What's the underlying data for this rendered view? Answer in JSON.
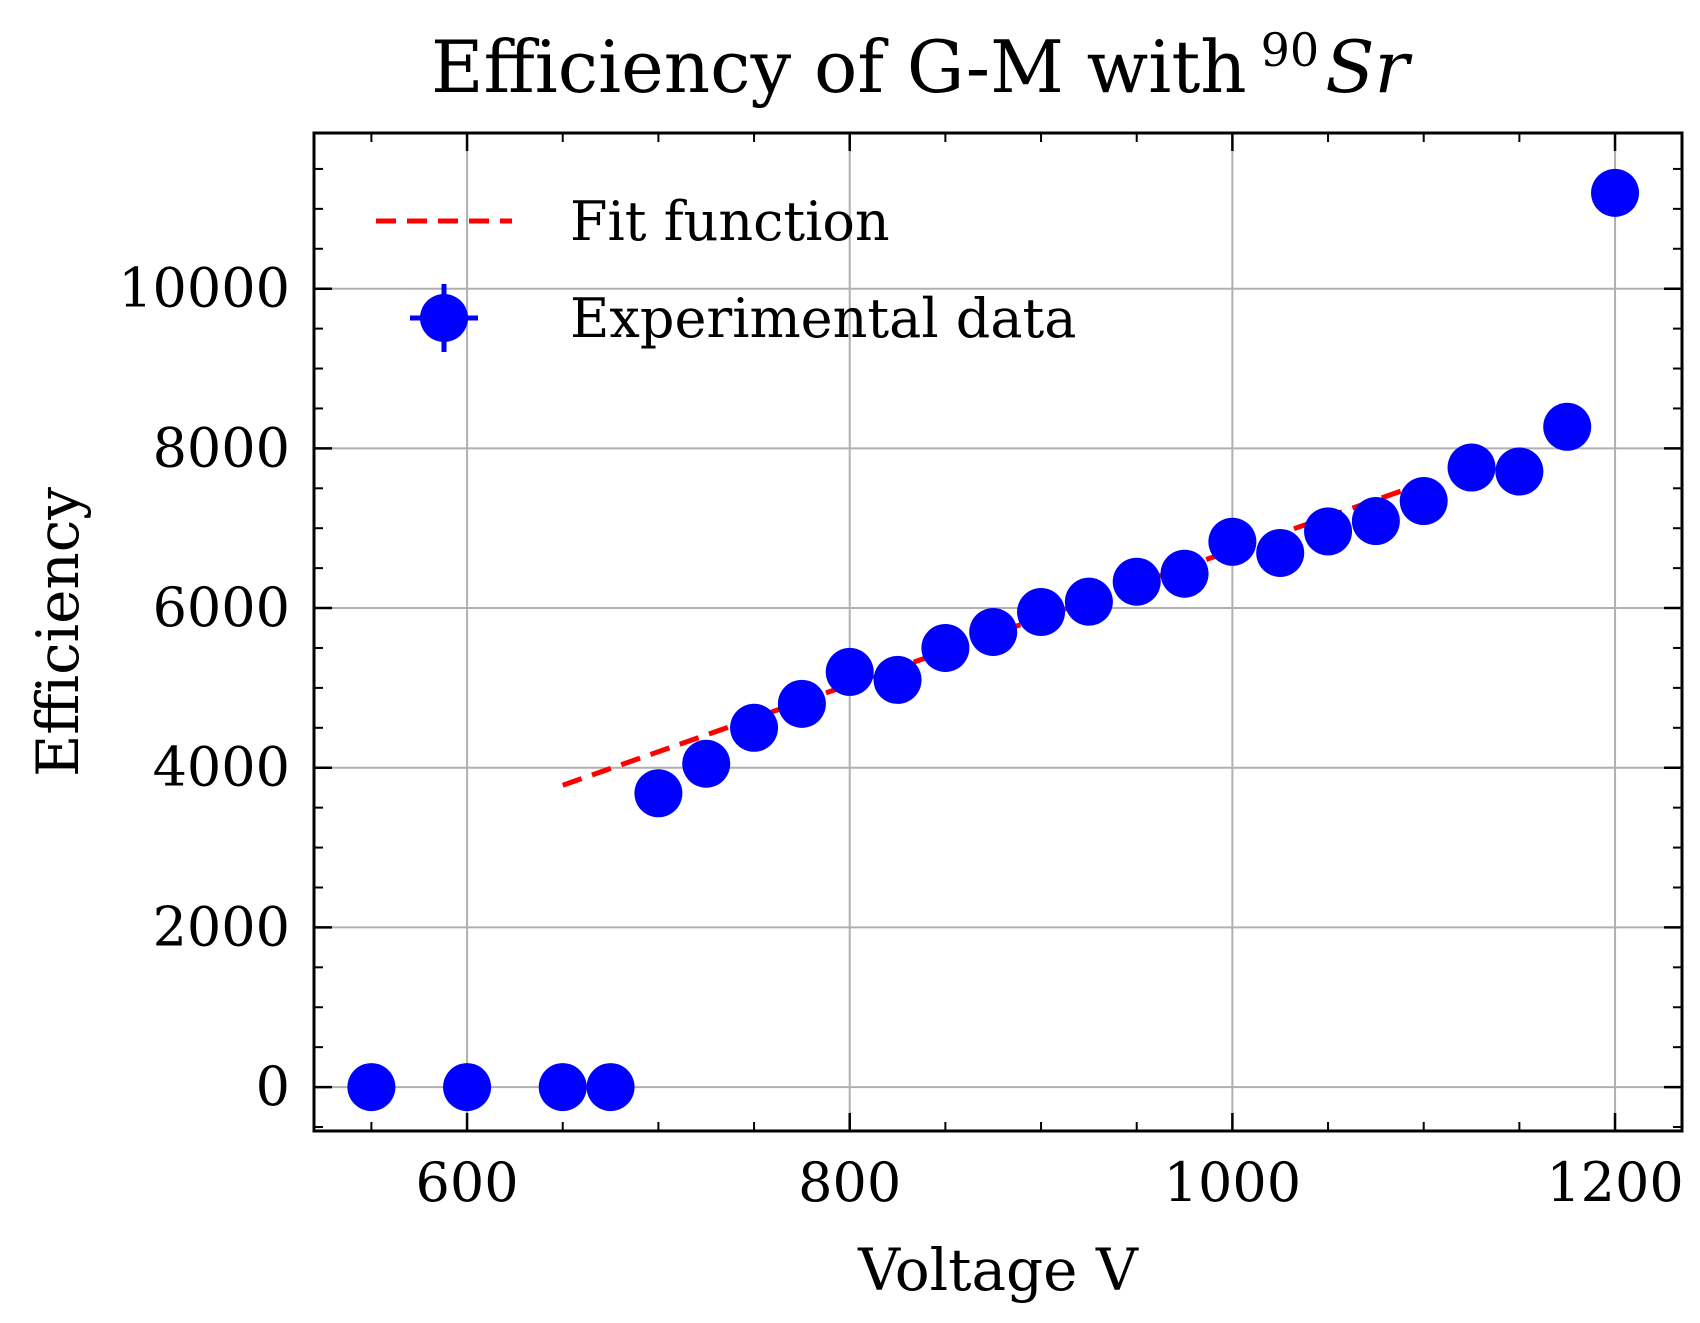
{
  "chart_data": {
    "type": "scatter",
    "title": "Efficiency of G-M with",
    "title_superscript": "90",
    "title_symbol": "Sr",
    "xlabel": "Voltage V",
    "ylabel": "Efficiency",
    "xlim": [
      520,
      1235
    ],
    "ylim": [
      -550,
      11950
    ],
    "xticks": [
      600,
      800,
      1000,
      1200
    ],
    "yticks": [
      0,
      2000,
      4000,
      6000,
      8000,
      10000
    ],
    "xtick_labels": [
      "600",
      "800",
      "1000",
      "1200"
    ],
    "ytick_labels": [
      "0",
      "2000",
      "4000",
      "6000",
      "8000",
      "10000"
    ],
    "grid": true,
    "legend_position": "top-left",
    "series": [
      {
        "name": "Fit function",
        "kind": "line",
        "style": "dashed",
        "color": "#ff0000",
        "x": [
          650,
          1090
        ],
        "y": [
          3780,
          7480
        ]
      },
      {
        "name": "Experimental data",
        "kind": "errorbar-points",
        "color": "#0000ff",
        "x": [
          550,
          600,
          650,
          675,
          700,
          725,
          750,
          775,
          800,
          825,
          850,
          875,
          900,
          925,
          950,
          975,
          1000,
          1025,
          1050,
          1075,
          1100,
          1125,
          1150,
          1175,
          1200
        ],
        "y": [
          0,
          0,
          0,
          0,
          3680,
          4050,
          4500,
          4800,
          5200,
          5100,
          5500,
          5700,
          5950,
          6080,
          6330,
          6430,
          6830,
          6690,
          6960,
          7090,
          7340,
          7760,
          7710,
          8270,
          11200
        ]
      }
    ]
  }
}
